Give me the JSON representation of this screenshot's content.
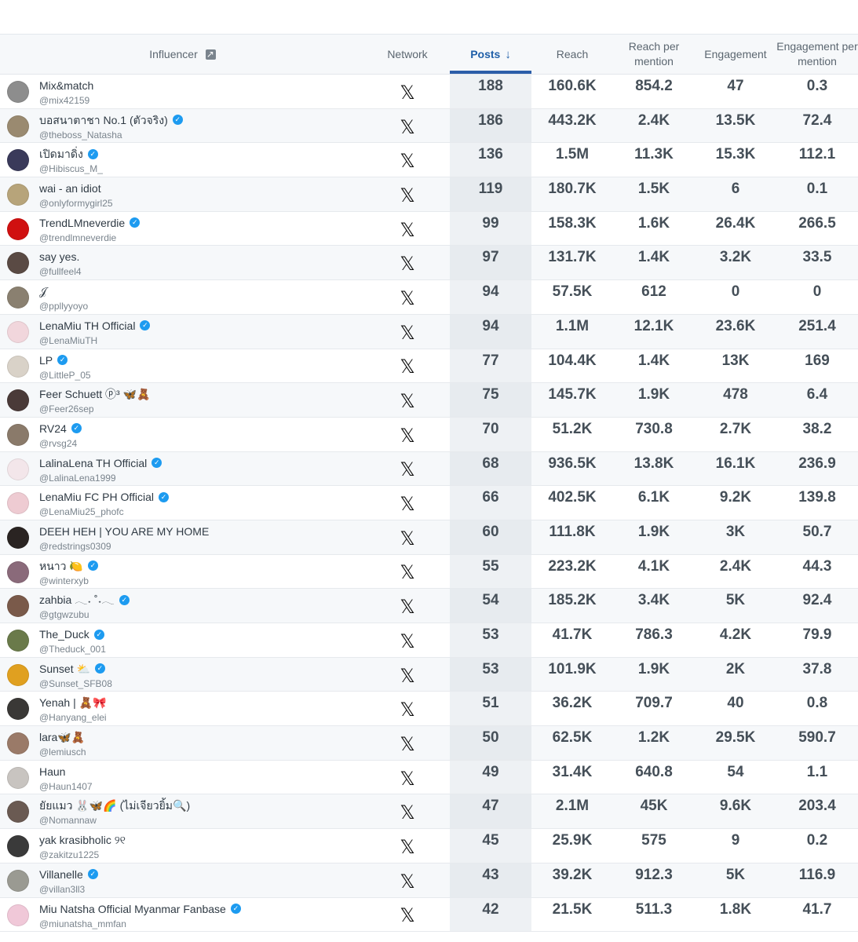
{
  "headers": {
    "influencer": "Influencer",
    "network": "Network",
    "posts": "Posts",
    "reach": "Reach",
    "reach_per_mention": "Reach per mention",
    "engagement": "Engagement",
    "engagement_per_mention": "Engagement per mention"
  },
  "rows": [
    {
      "name": "Mix&match",
      "handle": "@mix42159",
      "verified": false,
      "posts": "188",
      "reach": "160.6K",
      "rpm": "854.2",
      "eng": "47",
      "epm": "0.3",
      "avatar": "#8d8d8d"
    },
    {
      "name": "บอสนาตาชา No.1 (ตัวจริง)",
      "handle": "@theboss_Natasha",
      "verified": true,
      "posts": "186",
      "reach": "443.2K",
      "rpm": "2.4K",
      "eng": "13.5K",
      "epm": "72.4",
      "avatar": "#9a8a70"
    },
    {
      "name": "เปิดมาดิ่ง",
      "handle": "@Hibiscus_M_",
      "verified": true,
      "posts": "136",
      "reach": "1.5M",
      "rpm": "11.3K",
      "eng": "15.3K",
      "epm": "112.1",
      "avatar": "#3a3a5a"
    },
    {
      "name": "wai - an idiot",
      "handle": "@onlyformygirl25",
      "verified": false,
      "posts": "119",
      "reach": "180.7K",
      "rpm": "1.5K",
      "eng": "6",
      "epm": "0.1",
      "avatar": "#b7a47a"
    },
    {
      "name": "TrendLMneverdie",
      "handle": "@trendlmneverdie",
      "verified": true,
      "posts": "99",
      "reach": "158.3K",
      "rpm": "1.6K",
      "eng": "26.4K",
      "epm": "266.5",
      "avatar": "#d01010"
    },
    {
      "name": "say yes.",
      "handle": "@fullfeel4",
      "verified": false,
      "posts": "97",
      "reach": "131.7K",
      "rpm": "1.4K",
      "eng": "3.2K",
      "epm": "33.5",
      "avatar": "#5a4a44"
    },
    {
      "name": "𝒥",
      "handle": "@ppllyyoyo",
      "verified": false,
      "posts": "94",
      "reach": "57.5K",
      "rpm": "612",
      "eng": "0",
      "epm": "0",
      "avatar": "#8a8070"
    },
    {
      "name": "LenaMiu TH Official",
      "handle": "@LenaMiuTH",
      "verified": true,
      "posts": "94",
      "reach": "1.1M",
      "rpm": "12.1K",
      "eng": "23.6K",
      "epm": "251.4",
      "avatar": "#f1d6dc"
    },
    {
      "name": "LP",
      "handle": "@LittleP_05",
      "verified": true,
      "posts": "77",
      "reach": "104.4K",
      "rpm": "1.4K",
      "eng": "13K",
      "epm": "169",
      "avatar": "#d9d2c8"
    },
    {
      "name": "Feer Schuett ⓟ³ 🦋🧸",
      "handle": "@Feer26sep",
      "verified": false,
      "posts": "75",
      "reach": "145.7K",
      "rpm": "1.9K",
      "eng": "478",
      "epm": "6.4",
      "avatar": "#4a3a38"
    },
    {
      "name": "RV24",
      "handle": "@rvsg24",
      "verified": true,
      "posts": "70",
      "reach": "51.2K",
      "rpm": "730.8",
      "eng": "2.7K",
      "epm": "38.2",
      "avatar": "#8a7a6a"
    },
    {
      "name": "LalinaLena TH Official",
      "handle": "@LalinaLena1999",
      "verified": true,
      "posts": "68",
      "reach": "936.5K",
      "rpm": "13.8K",
      "eng": "16.1K",
      "epm": "236.9",
      "avatar": "#f3e6ea"
    },
    {
      "name": "LenaMiu FC PH Official",
      "handle": "@LenaMiu25_phofc",
      "verified": true,
      "posts": "66",
      "reach": "402.5K",
      "rpm": "6.1K",
      "eng": "9.2K",
      "epm": "139.8",
      "avatar": "#eecbd2"
    },
    {
      "name": "DEEH HEH | YOU ARE MY HOME",
      "handle": "@redstrings0309",
      "verified": false,
      "posts": "60",
      "reach": "111.8K",
      "rpm": "1.9K",
      "eng": "3K",
      "epm": "50.7",
      "avatar": "#2a2422"
    },
    {
      "name": "หนาว 🍋",
      "handle": "@winterxyb",
      "verified": true,
      "posts": "55",
      "reach": "223.2K",
      "rpm": "4.1K",
      "eng": "2.4K",
      "epm": "44.3",
      "avatar": "#8a6a7a"
    },
    {
      "name": "zahbia 𓂃˖ ˚˖𓂃",
      "handle": "@gtgwzubu",
      "verified": true,
      "posts": "54",
      "reach": "185.2K",
      "rpm": "3.4K",
      "eng": "5K",
      "epm": "92.4",
      "avatar": "#7a5a4a"
    },
    {
      "name": "The_Duck",
      "handle": "@Theduck_001",
      "verified": true,
      "posts": "53",
      "reach": "41.7K",
      "rpm": "786.3",
      "eng": "4.2K",
      "epm": "79.9",
      "avatar": "#6a7a4a"
    },
    {
      "name": "Sunset ⛅",
      "handle": "@Sunset_SFB08",
      "verified": true,
      "posts": "53",
      "reach": "101.9K",
      "rpm": "1.9K",
      "eng": "2K",
      "epm": "37.8",
      "avatar": "#e0a020"
    },
    {
      "name": "Yenah | 🧸🎀",
      "handle": "@Hanyang_elei",
      "verified": false,
      "posts": "51",
      "reach": "36.2K",
      "rpm": "709.7",
      "eng": "40",
      "epm": "0.8",
      "avatar": "#3a3836"
    },
    {
      "name": "lara🦋🧸",
      "handle": "@lemiusch",
      "verified": false,
      "posts": "50",
      "reach": "62.5K",
      "rpm": "1.2K",
      "eng": "29.5K",
      "epm": "590.7",
      "avatar": "#9a7a68"
    },
    {
      "name": "Haun",
      "handle": "@Haun1407",
      "verified": false,
      "posts": "49",
      "reach": "31.4K",
      "rpm": "640.8",
      "eng": "54",
      "epm": "1.1",
      "avatar": "#c8c4c0"
    },
    {
      "name": "ยัยแมว 🐰🦋🌈 (ไม่เจียวยิ้ม🔍)",
      "handle": "@Nomannaw",
      "verified": false,
      "posts": "47",
      "reach": "2.1M",
      "rpm": "45K",
      "eng": "9.6K",
      "epm": "203.4",
      "avatar": "#6a5a52"
    },
    {
      "name": "yak krasibholic ୨୧",
      "handle": "@zakitzu1225",
      "verified": false,
      "posts": "45",
      "reach": "25.9K",
      "rpm": "575",
      "eng": "9",
      "epm": "0.2",
      "avatar": "#3a3a3a"
    },
    {
      "name": "Villanelle",
      "handle": "@villan3ll3",
      "verified": true,
      "posts": "43",
      "reach": "39.2K",
      "rpm": "912.3",
      "eng": "5K",
      "epm": "116.9",
      "avatar": "#9a9a92"
    },
    {
      "name": "Miu Natsha Official Myanmar Fanbase",
      "handle": "@miunatsha_mmfan",
      "verified": true,
      "posts": "42",
      "reach": "21.5K",
      "rpm": "511.3",
      "eng": "1.8K",
      "epm": "41.7",
      "avatar": "#f0c8d8"
    }
  ]
}
